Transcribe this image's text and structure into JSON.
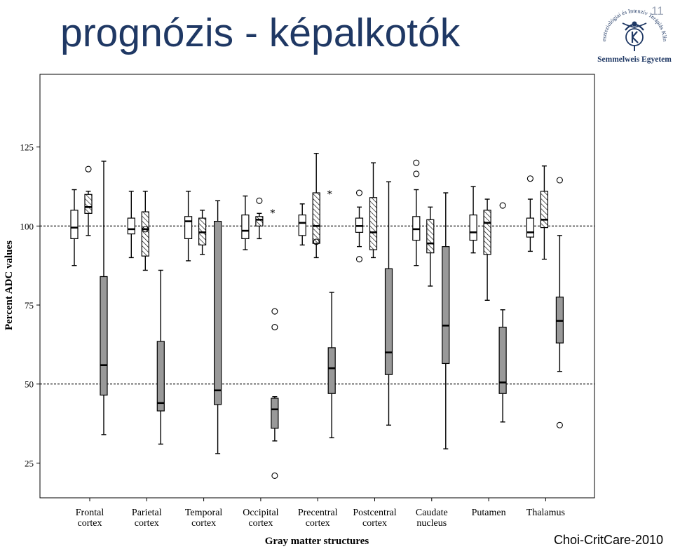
{
  "slide": {
    "title": "prognózis - képalkotók",
    "number": "11",
    "footer": "Choi-CritCare-2010",
    "logo": {
      "name": "Semmelweis Egyetem",
      "arc_text": "Aneszteziológiai és Intenzív Terápiás Klinika",
      "icon": "semmelweis-logo-icon",
      "color": "#1f3864"
    }
  },
  "chart_data": {
    "type": "box",
    "title": "",
    "xlabel": "Gray matter structures",
    "ylabel": "Percent ADC values",
    "ylim": [
      14,
      148
    ],
    "yticks": [
      25,
      50,
      75,
      100,
      125
    ],
    "reference_lines": [
      50,
      100
    ],
    "grid": false,
    "legend": "none",
    "series_styles": [
      {
        "key": "group1",
        "fill": "white"
      },
      {
        "key": "group2",
        "fill": "hatched"
      },
      {
        "key": "group3",
        "fill": "#999999"
      }
    ],
    "categories": [
      {
        "label": [
          "Frontal",
          "cortex"
        ],
        "boxes": [
          {
            "min": 87.5,
            "q1": 96,
            "median": 99.5,
            "q3": 105,
            "max": 111.5,
            "outliers": []
          },
          {
            "min": 97,
            "q1": 104,
            "median": 106,
            "q3": 110,
            "max": 111,
            "outliers": [
              118
            ]
          },
          {
            "min": 34,
            "q1": 46.5,
            "median": 56,
            "q3": 84,
            "max": 120.5,
            "outliers": []
          }
        ]
      },
      {
        "label": [
          "Parietal",
          "cortex"
        ],
        "boxes": [
          {
            "min": 90,
            "q1": 97.5,
            "median": 99,
            "q3": 102.5,
            "max": 111,
            "outliers": []
          },
          {
            "min": 86,
            "q1": 90.5,
            "median": 99,
            "q3": 104.5,
            "max": 111,
            "outliers": [
              99
            ]
          },
          {
            "min": 31,
            "q1": 41.5,
            "median": 44,
            "q3": 63.5,
            "max": 86,
            "outliers": []
          }
        ]
      },
      {
        "label": [
          "Temporal",
          "cortex"
        ],
        "boxes": [
          {
            "min": 89,
            "q1": 96,
            "median": 101.5,
            "q3": 103,
            "max": 111,
            "outliers": []
          },
          {
            "min": 91,
            "q1": 94,
            "median": 98,
            "q3": 102.5,
            "max": 105,
            "outliers": []
          },
          {
            "min": 28,
            "q1": 43.5,
            "median": 48,
            "q3": 101.5,
            "max": 108,
            "outliers": []
          }
        ]
      },
      {
        "label": [
          "Occipital",
          "cortex"
        ],
        "boxes": [
          {
            "min": 92.5,
            "q1": 96,
            "median": 98.5,
            "q3": 103.5,
            "max": 109.5,
            "outliers": []
          },
          {
            "min": 96,
            "q1": 100,
            "median": 102,
            "q3": 103,
            "max": 104,
            "outliers": [
              108
            ],
            "extremes": [
              104.5
            ]
          },
          {
            "min": 32,
            "q1": 36,
            "median": 42,
            "q3": 45.5,
            "max": 46,
            "outliers": [
              73,
              68,
              21
            ]
          }
        ]
      },
      {
        "label": [
          "Precentral",
          "cortex"
        ],
        "boxes": [
          {
            "min": 94,
            "q1": 97,
            "median": 101,
            "q3": 103.5,
            "max": 107,
            "outliers": []
          },
          {
            "min": 90,
            "q1": 94.5,
            "median": 100,
            "q3": 110.5,
            "max": 123,
            "outliers": [
              95
            ],
            "extremes": [
              110.5
            ]
          },
          {
            "min": 33,
            "q1": 47,
            "median": 55,
            "q3": 61.5,
            "max": 79,
            "outliers": []
          }
        ]
      },
      {
        "label": [
          "Postcentral",
          "cortex"
        ],
        "boxes": [
          {
            "min": 93.5,
            "q1": 98,
            "median": 100,
            "q3": 102.5,
            "max": 106,
            "outliers": [
              110.5,
              89.5
            ]
          },
          {
            "min": 90,
            "q1": 92.5,
            "median": 98,
            "q3": 109,
            "max": 120,
            "outliers": []
          },
          {
            "min": 37,
            "q1": 53,
            "median": 60,
            "q3": 86.5,
            "max": 114,
            "outliers": []
          }
        ]
      },
      {
        "label": [
          "Caudate",
          "nucleus"
        ],
        "boxes": [
          {
            "min": 87.5,
            "q1": 95.5,
            "median": 99,
            "q3": 103,
            "max": 111.5,
            "outliers": [
              120,
              116.5
            ]
          },
          {
            "min": 81,
            "q1": 91.5,
            "median": 94.5,
            "q3": 102,
            "max": 106,
            "outliers": []
          },
          {
            "min": 29.5,
            "q1": 56.5,
            "median": 68.5,
            "q3": 93.5,
            "max": 110.5,
            "outliers": []
          }
        ]
      },
      {
        "label": [
          "Putamen",
          ""
        ],
        "boxes": [
          {
            "min": 91.5,
            "q1": 95.5,
            "median": 98,
            "q3": 103.5,
            "max": 112.5,
            "outliers": []
          },
          {
            "min": 76.5,
            "q1": 91,
            "median": 101,
            "q3": 105,
            "max": 108.5,
            "outliers": []
          },
          {
            "min": 38,
            "q1": 47,
            "median": 50.5,
            "q3": 68,
            "max": 73.5,
            "outliers": [
              106.5
            ]
          }
        ]
      },
      {
        "label": [
          "Thalamus",
          ""
        ],
        "boxes": [
          {
            "min": 92,
            "q1": 96.5,
            "median": 98,
            "q3": 102.5,
            "max": 108.5,
            "outliers": [
              115
            ]
          },
          {
            "min": 89.5,
            "q1": 99.5,
            "median": 102,
            "q3": 111,
            "max": 119,
            "outliers": []
          },
          {
            "min": 54,
            "q1": 63,
            "median": 70,
            "q3": 77.5,
            "max": 97,
            "outliers": [
              114.5,
              37
            ]
          }
        ]
      }
    ]
  }
}
